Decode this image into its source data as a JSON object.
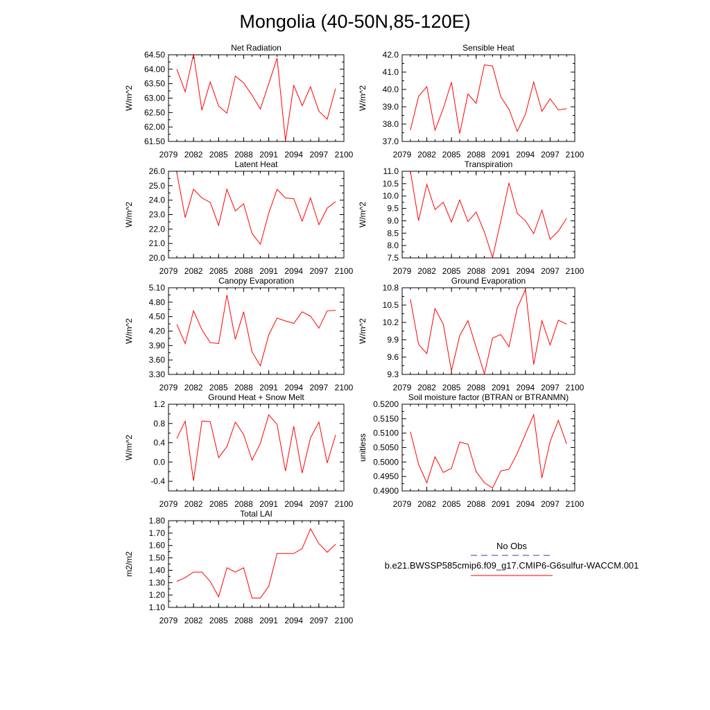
{
  "page_title": "Mongolia (40-50N,85-120E)",
  "legend": {
    "obs_label": "No Obs",
    "model_label": "b.e21.BWSSP585cmip6.f09_g17.CMIP6-G6sulfur-WACCM.001",
    "obs_color": "#3a3a9a",
    "model_color": "#ff0000"
  },
  "chart_data": [
    {
      "type": "line",
      "title": "Net Radiation",
      "ylabel": "W/m^2",
      "xlim": [
        2079,
        2100
      ],
      "ylim": [
        61.5,
        64.5
      ],
      "xticks": [
        2079,
        2082,
        2085,
        2088,
        2091,
        2094,
        2097,
        2100
      ],
      "yticks": [
        "61.50",
        "62.00",
        "62.50",
        "63.00",
        "63.50",
        "64.00",
        "64.50"
      ],
      "x": [
        2080,
        2081,
        2082,
        2083,
        2084,
        2085,
        2086,
        2087,
        2088,
        2089,
        2090,
        2091,
        2092,
        2093,
        2094,
        2095,
        2096,
        2097,
        2098,
        2099
      ],
      "series": [
        {
          "values": [
            64.0,
            63.22,
            64.52,
            62.58,
            63.56,
            62.73,
            62.48,
            63.76,
            63.53,
            63.1,
            62.62,
            63.5,
            64.38,
            61.52,
            63.44,
            62.74,
            63.39,
            62.55,
            62.27,
            63.33
          ],
          "color": "#ff0000"
        }
      ]
    },
    {
      "type": "line",
      "title": "Sensible Heat",
      "ylabel": "W/m^2",
      "xlim": [
        2079,
        2100
      ],
      "ylim": [
        37.0,
        42.0
      ],
      "xticks": [
        2079,
        2082,
        2085,
        2088,
        2091,
        2094,
        2097,
        2100
      ],
      "yticks": [
        "37.0",
        "38.0",
        "39.0",
        "40.0",
        "41.0",
        "42.0"
      ],
      "x": [
        2080,
        2081,
        2082,
        2083,
        2084,
        2085,
        2086,
        2087,
        2088,
        2089,
        2090,
        2091,
        2092,
        2093,
        2094,
        2095,
        2096,
        2097,
        2098,
        2099
      ],
      "series": [
        {
          "values": [
            37.65,
            39.6,
            40.16,
            37.65,
            38.9,
            40.42,
            37.45,
            39.74,
            39.2,
            41.42,
            41.35,
            39.57,
            38.86,
            37.58,
            38.58,
            40.43,
            38.74,
            39.46,
            38.82,
            38.89
          ],
          "color": "#ff0000"
        }
      ]
    },
    {
      "type": "line",
      "title": "Latent Heat",
      "ylabel": "W/m^2",
      "xlim": [
        2079,
        2100
      ],
      "ylim": [
        20.0,
        26.0
      ],
      "xticks": [
        2079,
        2082,
        2085,
        2088,
        2091,
        2094,
        2097,
        2100
      ],
      "yticks": [
        "20.0",
        "21.0",
        "22.0",
        "23.0",
        "24.0",
        "25.0",
        "26.0"
      ],
      "x": [
        2080,
        2081,
        2082,
        2083,
        2084,
        2085,
        2086,
        2087,
        2088,
        2089,
        2090,
        2091,
        2092,
        2093,
        2094,
        2095,
        2096,
        2097,
        2098,
        2099
      ],
      "series": [
        {
          "values": [
            25.9,
            22.8,
            24.75,
            24.15,
            23.85,
            22.25,
            24.75,
            23.25,
            23.75,
            21.7,
            20.95,
            23.1,
            24.75,
            24.15,
            24.1,
            22.55,
            24.15,
            22.3,
            23.45,
            23.9
          ],
          "color": "#ff0000"
        }
      ]
    },
    {
      "type": "line",
      "title": "Transpiration",
      "ylabel": "W/m^2",
      "xlim": [
        2079,
        2100
      ],
      "ylim": [
        7.5,
        11.0
      ],
      "xticks": [
        2079,
        2082,
        2085,
        2088,
        2091,
        2094,
        2097,
        2100
      ],
      "yticks": [
        "7.5",
        "8.0",
        "8.5",
        "9.0",
        "9.5",
        "10.0",
        "10.5",
        "11.0"
      ],
      "x": [
        2080,
        2081,
        2082,
        2083,
        2084,
        2085,
        2086,
        2087,
        2088,
        2089,
        2090,
        2091,
        2092,
        2093,
        2094,
        2095,
        2096,
        2097,
        2098,
        2099
      ],
      "series": [
        {
          "values": [
            11.0,
            9.0,
            10.47,
            9.45,
            9.75,
            8.95,
            9.84,
            8.97,
            9.35,
            8.55,
            7.52,
            9.0,
            10.53,
            9.3,
            9.0,
            8.48,
            9.43,
            8.25,
            8.58,
            9.1
          ],
          "color": "#ff0000"
        }
      ]
    },
    {
      "type": "line",
      "title": "Canopy Evaporation",
      "ylabel": "W/m^2",
      "xlim": [
        2079,
        2100
      ],
      "ylim": [
        3.3,
        5.1
      ],
      "xticks": [
        2079,
        2082,
        2085,
        2088,
        2091,
        2094,
        2097,
        2100
      ],
      "yticks": [
        "3.30",
        "3.60",
        "3.90",
        "4.20",
        "4.50",
        "4.80",
        "5.10"
      ],
      "x": [
        2080,
        2081,
        2082,
        2083,
        2084,
        2085,
        2086,
        2087,
        2088,
        2089,
        2090,
        2091,
        2092,
        2093,
        2094,
        2095,
        2096,
        2097,
        2098,
        2099
      ],
      "series": [
        {
          "values": [
            4.34,
            3.94,
            4.62,
            4.23,
            3.96,
            3.94,
            4.95,
            4.03,
            4.6,
            3.77,
            3.48,
            4.12,
            4.47,
            4.41,
            4.36,
            4.6,
            4.51,
            4.26,
            4.62,
            4.63
          ],
          "color": "#ff0000"
        }
      ]
    },
    {
      "type": "line",
      "title": "Ground Evaporation",
      "ylabel": "W/m^2",
      "xlim": [
        2079,
        2100
      ],
      "ylim": [
        9.3,
        10.8
      ],
      "xticks": [
        2079,
        2082,
        2085,
        2088,
        2091,
        2094,
        2097,
        2100
      ],
      "yticks": [
        "9.3",
        "9.6",
        "9.9",
        "10.2",
        "10.5",
        "10.8"
      ],
      "x": [
        2080,
        2081,
        2082,
        2083,
        2084,
        2085,
        2086,
        2087,
        2088,
        2089,
        2090,
        2091,
        2092,
        2093,
        2094,
        2095,
        2096,
        2097,
        2098,
        2099
      ],
      "series": [
        {
          "values": [
            10.6,
            9.82,
            9.66,
            10.44,
            10.17,
            9.36,
            9.97,
            10.23,
            9.77,
            9.31,
            9.93,
            9.99,
            9.78,
            10.45,
            10.77,
            9.47,
            10.23,
            9.81,
            10.24,
            10.17
          ],
          "color": "#ff0000"
        }
      ]
    },
    {
      "type": "line",
      "title": "Ground Heat + Snow Melt",
      "ylabel": "W/m^2",
      "xlim": [
        2079,
        2100
      ],
      "ylim": [
        -0.6,
        1.2
      ],
      "xticks": [
        2079,
        2082,
        2085,
        2088,
        2091,
        2094,
        2097,
        2100
      ],
      "yticks": [
        "-0.4",
        "0.0",
        "0.4",
        "0.8",
        "1.2"
      ],
      "x": [
        2080,
        2081,
        2082,
        2083,
        2084,
        2085,
        2086,
        2087,
        2088,
        2089,
        2090,
        2091,
        2092,
        2093,
        2094,
        2095,
        2096,
        2097,
        2098,
        2099
      ],
      "series": [
        {
          "values": [
            0.49,
            0.85,
            -0.39,
            0.85,
            0.84,
            0.09,
            0.32,
            0.83,
            0.57,
            0.04,
            0.39,
            0.98,
            0.78,
            -0.19,
            0.74,
            -0.23,
            0.5,
            0.83,
            -0.02,
            0.56
          ],
          "color": "#ff0000"
        }
      ]
    },
    {
      "type": "line",
      "title": "Soil moisture factor (BTRAN or BTRANMN)",
      "ylabel": "unitless",
      "xlim": [
        2079,
        2100
      ],
      "ylim": [
        0.49,
        0.52
      ],
      "xticks": [
        2079,
        2082,
        2085,
        2088,
        2091,
        2094,
        2097,
        2100
      ],
      "yticks": [
        "0.4900",
        "0.4950",
        "0.5000",
        "0.5050",
        "0.5100",
        "0.5150",
        "0.5200"
      ],
      "x": [
        2080,
        2081,
        2082,
        2083,
        2084,
        2085,
        2086,
        2087,
        2088,
        2089,
        2090,
        2091,
        2092,
        2093,
        2094,
        2095,
        2096,
        2097,
        2098,
        2099
      ],
      "series": [
        {
          "values": [
            0.5105,
            0.4992,
            0.4928,
            0.5018,
            0.4964,
            0.4978,
            0.5069,
            0.5062,
            0.4967,
            0.4928,
            0.491,
            0.4969,
            0.4975,
            0.503,
            0.5097,
            0.5164,
            0.4945,
            0.5071,
            0.5144,
            0.5063
          ],
          "color": "#ff0000"
        }
      ]
    },
    {
      "type": "line",
      "title": "Total LAI",
      "ylabel": "m2/m2",
      "xlim": [
        2079,
        2100
      ],
      "ylim": [
        1.1,
        1.8
      ],
      "xticks": [
        2079,
        2082,
        2085,
        2088,
        2091,
        2094,
        2097,
        2100
      ],
      "yticks": [
        "1.10",
        "1.20",
        "1.30",
        "1.40",
        "1.50",
        "1.60",
        "1.70",
        "1.80"
      ],
      "x": [
        2080,
        2081,
        2082,
        2083,
        2084,
        2085,
        2086,
        2087,
        2088,
        2089,
        2090,
        2091,
        2092,
        2093,
        2094,
        2095,
        2096,
        2097,
        2098,
        2099
      ],
      "series": [
        {
          "values": [
            1.31,
            1.34,
            1.385,
            1.385,
            1.31,
            1.185,
            1.42,
            1.385,
            1.42,
            1.175,
            1.175,
            1.27,
            1.535,
            1.535,
            1.535,
            1.575,
            1.735,
            1.615,
            1.545,
            1.61
          ],
          "color": "#ff0000"
        }
      ]
    }
  ]
}
